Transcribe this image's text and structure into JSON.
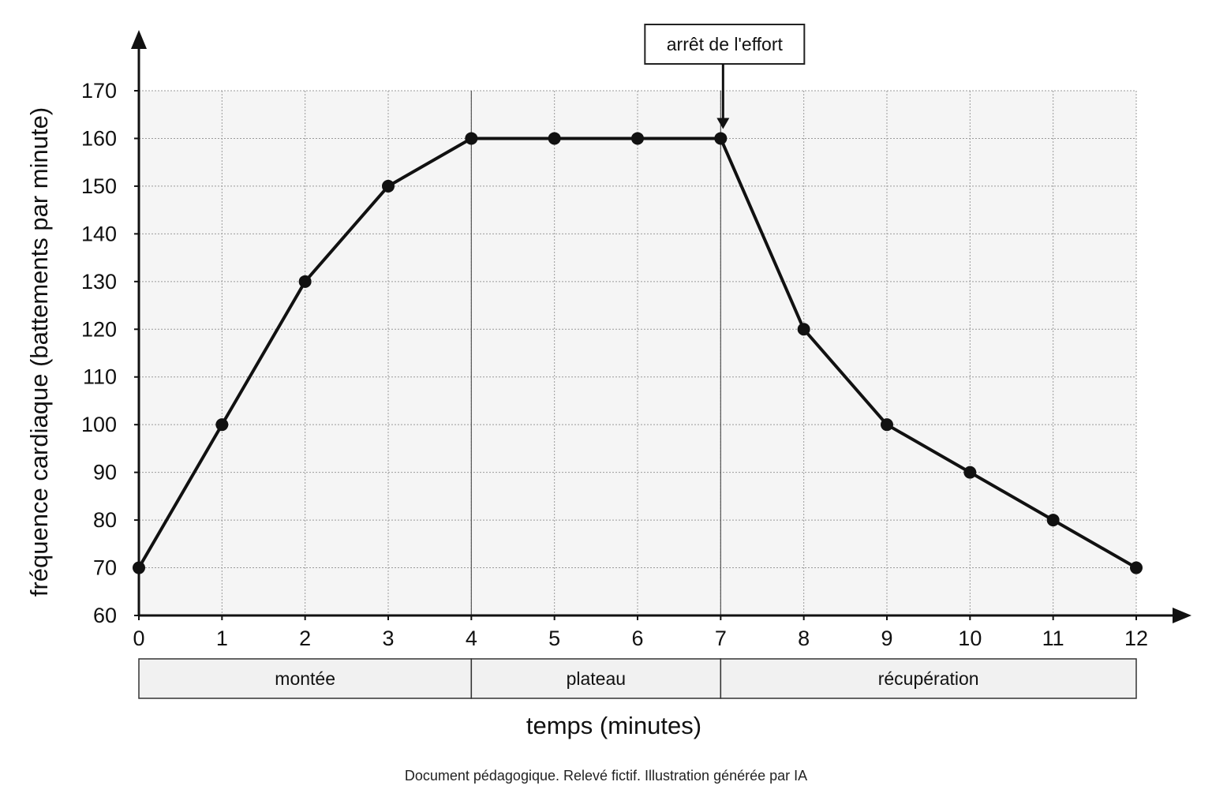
{
  "chart_data": {
    "type": "line",
    "title": "",
    "xlabel": "temps (minutes)",
    "ylabel": "fréquence cardiaque (battements par minute)",
    "xlim": [
      0,
      12
    ],
    "ylim": [
      60,
      170
    ],
    "x_ticks": [
      0,
      1,
      2,
      3,
      4,
      5,
      6,
      7,
      8,
      9,
      10,
      11,
      12
    ],
    "y_ticks": [
      60,
      70,
      80,
      90,
      100,
      110,
      120,
      130,
      140,
      150,
      160,
      170
    ],
    "grid": true,
    "series": [
      {
        "x": [
          0,
          1,
          2,
          3,
          4,
          5,
          6,
          7,
          8,
          9,
          10,
          11,
          12
        ],
        "values": [
          70,
          100,
          130,
          150,
          160,
          160,
          160,
          160,
          120,
          100,
          90,
          80,
          70
        ]
      }
    ],
    "phases": [
      {
        "label": "montée",
        "start": 0,
        "end": 4
      },
      {
        "label": "plateau",
        "start": 4,
        "end": 7
      },
      {
        "label": "récupération",
        "start": 7,
        "end": 12
      }
    ],
    "annotations": [
      {
        "text": "arrêt de l'effort",
        "x": 7,
        "y": 160
      }
    ],
    "colors": {
      "line": "#111111",
      "plot_background": "#f5f5f5",
      "grid": "#9a9a9a",
      "phase_box": "#f1f1f1"
    }
  },
  "footer": {
    "note": "Document pédagogique. Relevé fictif. Illustration générée par IA"
  }
}
